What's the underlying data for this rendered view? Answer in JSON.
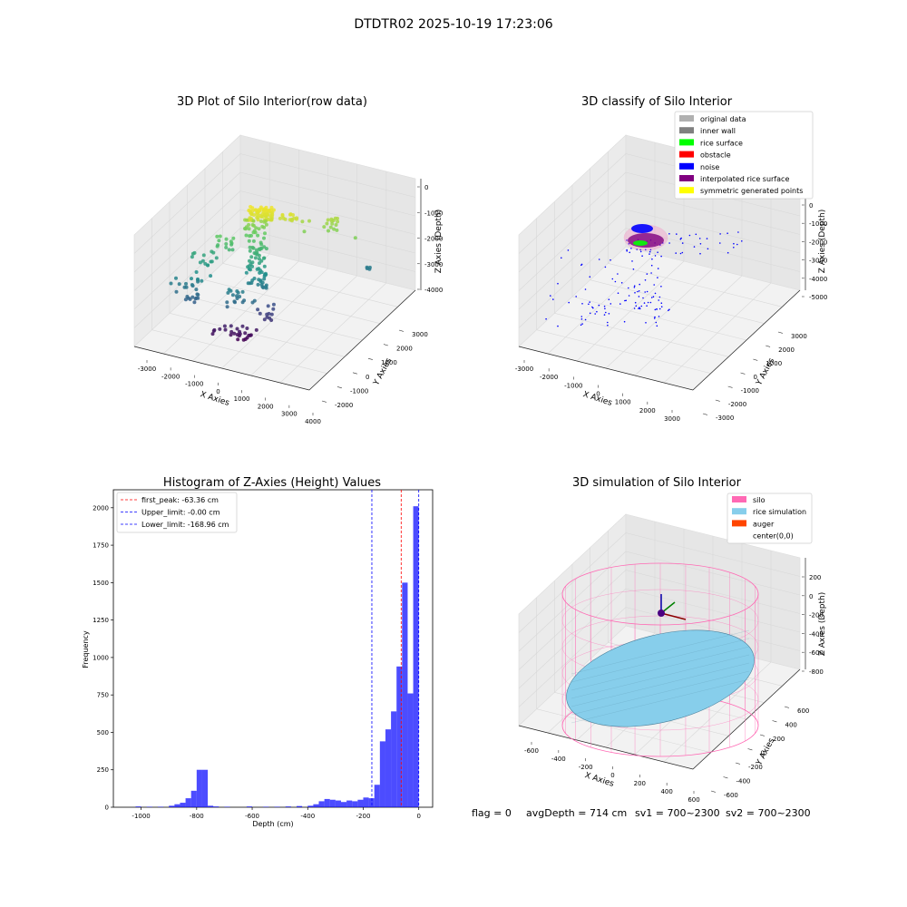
{
  "suptitle": "DTDTR02 2025-10-19 17:23:06",
  "panel1": {
    "title": "3D Plot of Silo Interior(row data)",
    "xlabel": "X Axies",
    "ylabel": "Y Axies",
    "zlabel": "Z Axies (Depth)",
    "xticks": [
      "-3000",
      "-2000",
      "-1000",
      "0",
      "1000",
      "2000",
      "3000",
      "4000"
    ],
    "yticks": [
      "-2000",
      "-1000",
      "0",
      "1000",
      "2000",
      "3000"
    ],
    "zticks": [
      "0",
      "-1000",
      "-2000",
      "-3000",
      "-4000"
    ]
  },
  "panel2": {
    "title": "3D classify of Silo Interior",
    "xlabel": "X Axies",
    "ylabel": "Y Axies",
    "zlabel": "Z Axies (Depth)",
    "xticks": [
      "-3000",
      "-2000",
      "-1000",
      "0",
      "1000",
      "2000",
      "3000"
    ],
    "yticks": [
      "-3000",
      "-2000",
      "-1000",
      "0",
      "1000",
      "2000",
      "3000"
    ],
    "zticks": [
      "0",
      "-1000",
      "-2000",
      "-3000",
      "-4000",
      "-5000"
    ],
    "legend": [
      {
        "label": "original data",
        "color": "#b0b0b0"
      },
      {
        "label": "inner wall",
        "color": "#808080"
      },
      {
        "label": "rice surface",
        "color": "#00ff00"
      },
      {
        "label": "obstacle",
        "color": "#ff0000"
      },
      {
        "label": "noise",
        "color": "#0000ff"
      },
      {
        "label": "interpolated rice surface",
        "color": "#800080"
      },
      {
        "label": "symmetric generated points",
        "color": "#ffff00"
      }
    ]
  },
  "chart_data": [
    {
      "type": "bar",
      "title": "Histogram of Z-Axies (Height) Values",
      "xlabel": "Depth (cm)",
      "ylabel": "Frequency",
      "xlim": [
        -1100,
        50
      ],
      "ylim": [
        0,
        2120
      ],
      "xticks": [
        "-1000",
        "-800",
        "-600",
        "-400",
        "-200",
        "0"
      ],
      "yticks": [
        "0",
        "250",
        "500",
        "750",
        "1000",
        "1250",
        "1500",
        "1750",
        "2000"
      ],
      "bar_color": "#0000ff",
      "bin_width": 20,
      "bins_left": [
        -1020,
        -980,
        -940,
        -900,
        -880,
        -860,
        -840,
        -820,
        -800,
        -780,
        -760,
        -740,
        -700,
        -620,
        -560,
        -520,
        -480,
        -440,
        -400,
        -380,
        -360,
        -340,
        -320,
        -300,
        -280,
        -260,
        -240,
        -220,
        -200,
        -180,
        -160,
        -140,
        -120,
        -100,
        -80,
        -60,
        -40,
        -20
      ],
      "values": [
        5,
        3,
        3,
        10,
        20,
        30,
        60,
        110,
        250,
        250,
        10,
        5,
        3,
        5,
        3,
        3,
        5,
        8,
        10,
        20,
        40,
        55,
        50,
        45,
        35,
        45,
        40,
        50,
        65,
        60,
        150,
        440,
        520,
        640,
        940,
        1500,
        760,
        2010
      ],
      "lines": [
        {
          "label": "first_peak: -63.36 cm",
          "x": -63.36,
          "color": "#ff0000"
        },
        {
          "label": "Upper_limit: -0.00 cm",
          "x": 0,
          "color": "#0000ff"
        },
        {
          "label": "Lower_limit: -168.96 cm",
          "x": -168.96,
          "color": "#0000ff"
        }
      ],
      "legend_position": "upper-left"
    }
  ],
  "panel4": {
    "title": "3D simulation of Silo Interior",
    "xlabel": "X Axies",
    "ylabel": "Y Axies",
    "zlabel": "Z Axies (Depth)",
    "xticks": [
      "-600",
      "-400",
      "-200",
      "0",
      "200",
      "400",
      "600"
    ],
    "yticks": [
      "-600",
      "-400",
      "-200",
      "0",
      "200",
      "400",
      "600"
    ],
    "zticks": [
      "200",
      "0",
      "-200",
      "-400",
      "-600",
      "-800"
    ],
    "legend": [
      {
        "label": "silo",
        "color": "#ff69b4"
      },
      {
        "label": "rice simulation",
        "color": "#87ceeb"
      },
      {
        "label": "auger",
        "color": "#ff4500"
      },
      {
        "label": "center(0,0)",
        "color": ""
      }
    ]
  },
  "footer": {
    "flag": "flag = 0",
    "avg_depth": "avgDepth = 714 cm",
    "sv1": "sv1 = 700~2300",
    "sv2": "sv2 = 700~2300"
  }
}
